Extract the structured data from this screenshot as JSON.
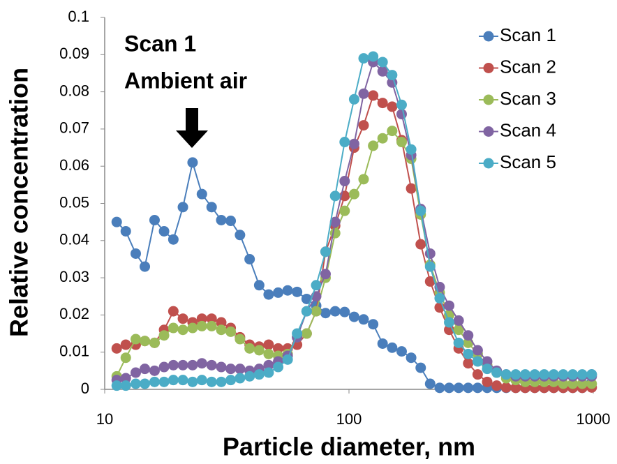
{
  "chart_data": {
    "type": "line",
    "xlabel": "Particle diameter, nm",
    "ylabel": "Relative concentration",
    "annotations": [
      "Scan 1",
      "Ambient air"
    ],
    "xscale": "log",
    "xlim": [
      10,
      1000
    ],
    "xticks": [
      10,
      100,
      1000
    ],
    "ylim": [
      0,
      0.1
    ],
    "yticks": [
      0,
      0.01,
      0.02,
      0.03,
      0.04,
      0.05,
      0.06,
      0.07,
      0.08,
      0.09,
      0.1
    ],
    "legend": "upper right",
    "x": [
      11.2,
      12.2,
      13.4,
      14.6,
      16.0,
      17.5,
      19.1,
      20.9,
      22.9,
      25.0,
      27.4,
      30.0,
      32.8,
      35.8,
      39.2,
      42.9,
      46.9,
      51.3,
      56.1,
      61.3,
      67.1,
      73.4,
      80.2,
      87.8,
      96.0,
      105.0,
      114.8,
      125.6,
      137.3,
      150.2,
      164.3,
      179.7,
      196.6,
      214.9,
      235.1,
      257.1,
      281.2,
      307.6,
      336.4,
      367.9,
      402.4,
      440.1,
      481.4,
      526.5,
      575.8,
      629.8,
      688.8,
      753.4,
      824.0,
      901.2,
      985.4
    ],
    "series": [
      {
        "name": "Scan 1",
        "color": "#4a7ebb",
        "values": [
          0.045,
          0.0425,
          0.0365,
          0.033,
          0.0455,
          0.0425,
          0.0403,
          0.049,
          0.061,
          0.0525,
          0.049,
          0.0455,
          0.0453,
          0.0415,
          0.035,
          0.028,
          0.0255,
          0.026,
          0.0266,
          0.0262,
          0.0243,
          0.0225,
          0.0205,
          0.021,
          0.0208,
          0.0195,
          0.0188,
          0.0175,
          0.0123,
          0.0112,
          0.0102,
          0.0085,
          0.0058,
          0.0015,
          0.0004,
          0.0004,
          0.0004,
          0.0004,
          0.0004,
          0.0004,
          0.0004,
          0.0004,
          0.0004,
          0.0004,
          0.0004,
          0.0004,
          0.0004,
          0.0004,
          0.0004,
          0.0004,
          0.004
        ]
      },
      {
        "name": "Scan 2",
        "color": "#c0504d",
        "values": [
          0.011,
          0.012,
          0.012,
          0.013,
          0.0125,
          0.016,
          0.021,
          0.019,
          0.018,
          0.019,
          0.019,
          0.018,
          0.0165,
          0.014,
          0.012,
          0.0115,
          0.012,
          0.011,
          0.011,
          0.012,
          0.015,
          0.021,
          0.037,
          0.044,
          0.052,
          0.065,
          0.071,
          0.079,
          0.077,
          0.076,
          0.067,
          0.054,
          0.039,
          0.029,
          0.022,
          0.016,
          0.011,
          0.007,
          0.004,
          0.002,
          0.001,
          0.0005,
          0.0004,
          0.0004,
          0.0004,
          0.0004,
          0.0004,
          0.0004,
          0.0004,
          0.0004,
          0.0005
        ]
      },
      {
        "name": "Scan 3",
        "color": "#9bbb59",
        "values": [
          0.0035,
          0.0085,
          0.0135,
          0.013,
          0.0125,
          0.0145,
          0.0165,
          0.016,
          0.0165,
          0.017,
          0.017,
          0.016,
          0.0155,
          0.0135,
          0.011,
          0.0105,
          0.0095,
          0.009,
          0.0095,
          0.014,
          0.015,
          0.021,
          0.03,
          0.042,
          0.048,
          0.0525,
          0.0565,
          0.0655,
          0.0675,
          0.0695,
          0.0665,
          0.062,
          0.047,
          0.0335,
          0.026,
          0.02,
          0.016,
          0.0125,
          0.0095,
          0.0065,
          0.0045,
          0.003,
          0.0025,
          0.002,
          0.002,
          0.002,
          0.002,
          0.0015,
          0.0015,
          0.0015,
          0.0015
        ]
      },
      {
        "name": "Scan 4",
        "color": "#8064a2",
        "values": [
          0.0025,
          0.003,
          0.0045,
          0.0055,
          0.005,
          0.006,
          0.0065,
          0.0065,
          0.0065,
          0.007,
          0.0065,
          0.006,
          0.0055,
          0.0055,
          0.005,
          0.0055,
          0.0065,
          0.0075,
          0.009,
          0.014,
          0.021,
          0.025,
          0.031,
          0.045,
          0.056,
          0.066,
          0.0795,
          0.088,
          0.0855,
          0.0825,
          0.074,
          0.063,
          0.0485,
          0.0365,
          0.0275,
          0.0225,
          0.0185,
          0.0145,
          0.0105,
          0.0075,
          0.005,
          0.004,
          0.0035,
          0.0035,
          0.0035,
          0.0035,
          0.0035,
          0.0035,
          0.0035,
          0.0035,
          0.0035
        ]
      },
      {
        "name": "Scan 5",
        "color": "#4bacc6",
        "values": [
          0.001,
          0.001,
          0.0015,
          0.0015,
          0.002,
          0.002,
          0.0025,
          0.0025,
          0.002,
          0.0025,
          0.002,
          0.002,
          0.0025,
          0.003,
          0.0035,
          0.004,
          0.0045,
          0.006,
          0.008,
          0.015,
          0.021,
          0.028,
          0.037,
          0.052,
          0.0665,
          0.078,
          0.089,
          0.0895,
          0.088,
          0.0845,
          0.0765,
          0.0645,
          0.048,
          0.033,
          0.0245,
          0.018,
          0.0125,
          0.0095,
          0.0075,
          0.0055,
          0.0045,
          0.004,
          0.004,
          0.004,
          0.004,
          0.004,
          0.004,
          0.004,
          0.004,
          0.004,
          0.004
        ]
      }
    ]
  }
}
